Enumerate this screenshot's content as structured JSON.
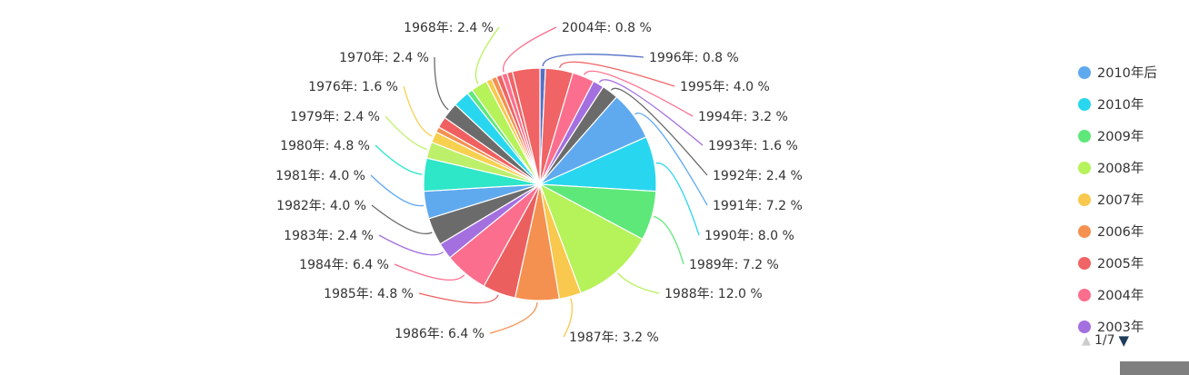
{
  "chart_data": {
    "type": "pie",
    "slices": [
      {
        "label": "1996年: 0.8 %",
        "name": "1996年",
        "value": 0.8,
        "color": "#5470c6"
      },
      {
        "label": "1995年: 4.0 %",
        "name": "1995年",
        "value": 4.0,
        "color": "#f06465"
      },
      {
        "label": "1994年: 3.2 %",
        "name": "1994年",
        "value": 3.2,
        "color": "#fc6e8d"
      },
      {
        "label": "1993年: 1.6 %",
        "name": "1993年",
        "value": 1.6,
        "color": "#a470e0"
      },
      {
        "label": "1992年: 2.4 %",
        "name": "1992年",
        "value": 2.4,
        "color": "#6b6b6b"
      },
      {
        "label": "1991年: 7.2 %",
        "name": "1991年",
        "value": 7.2,
        "color": "#5fa9ef"
      },
      {
        "label": "1990年: 8.0 %",
        "name": "1990年",
        "value": 8.0,
        "color": "#29d6ef"
      },
      {
        "label": "1989年: 7.2 %",
        "name": "1989年",
        "value": 7.2,
        "color": "#5ee87a"
      },
      {
        "label": "1988年: 12.0 %",
        "name": "1988年",
        "value": 12.0,
        "color": "#b6f25a"
      },
      {
        "label": "1987年: 3.2 %",
        "name": "1987年",
        "value": 3.2,
        "color": "#f8c94e"
      },
      {
        "label": "1986年: 6.4 %",
        "name": "1986年",
        "value": 6.4,
        "color": "#f59150"
      },
      {
        "label": "1985年: 4.8 %",
        "name": "1985年",
        "value": 4.8,
        "color": "#ec5f5f"
      },
      {
        "label": "1984年: 6.4 %",
        "name": "1984年",
        "value": 6.4,
        "color": "#fc6e8d"
      },
      {
        "label": "1983年: 2.4 %",
        "name": "1983年",
        "value": 2.4,
        "color": "#a470e0"
      },
      {
        "label": "1982年: 4.0 %",
        "name": "1982年",
        "value": 4.0,
        "color": "#6b6b6b"
      },
      {
        "label": "1981年: 4.0 %",
        "name": "1981年",
        "value": 4.0,
        "color": "#5fa9ef"
      },
      {
        "label": "1980年: 4.8 %",
        "name": "1980年",
        "value": 4.8,
        "color": "#2ee6c8"
      },
      {
        "label": "1979年: 2.4 %",
        "name": "1979年",
        "value": 2.4,
        "color": "#bdf06a"
      },
      {
        "label": "1976年: 1.6 %",
        "name": "1976年",
        "value": 1.6,
        "color": "#f8d050"
      },
      {
        "label": "",
        "name": "",
        "value": 0.8,
        "color": "#f59150"
      },
      {
        "label": "",
        "name": "",
        "value": 1.6,
        "color": "#f06060"
      },
      {
        "label": "1970年: 2.4 %",
        "name": "1970年",
        "value": 2.4,
        "color": "#6b6b6b"
      },
      {
        "label": "",
        "name": "",
        "value": 2.4,
        "color": "#29d6ef"
      },
      {
        "label": "",
        "name": "",
        "value": 0.8,
        "color": "#5ee87a"
      },
      {
        "label": "1968年: 2.4 %",
        "name": "1968年",
        "value": 2.4,
        "color": "#b6f25a"
      },
      {
        "label": "",
        "name": "",
        "value": 0.8,
        "color": "#f8c94e"
      },
      {
        "label": "",
        "name": "",
        "value": 0.8,
        "color": "#f59150"
      },
      {
        "label": "",
        "name": "",
        "value": 0.8,
        "color": "#f06465"
      },
      {
        "label": "2004年: 0.8 %",
        "name": "2004年",
        "value": 0.8,
        "color": "#fc6e8d"
      },
      {
        "label": "",
        "name": "",
        "value": 0.8,
        "color": "#f06465"
      },
      {
        "label": "",
        "name": "",
        "value": 4.0,
        "color": "#f06465"
      }
    ]
  },
  "legend": {
    "items": [
      {
        "label": "2010年后",
        "color": "#5fa9ef"
      },
      {
        "label": "2010年",
        "color": "#29d6ef"
      },
      {
        "label": "2009年",
        "color": "#5ee87a"
      },
      {
        "label": "2008年",
        "color": "#b6f25a"
      },
      {
        "label": "2007年",
        "color": "#f8c94e"
      },
      {
        "label": "2006年",
        "color": "#f59150"
      },
      {
        "label": "2005年",
        "color": "#f06465"
      },
      {
        "label": "2004年",
        "color": "#fc6e8d"
      },
      {
        "label": "2003年",
        "color": "#a470e0"
      }
    ],
    "pager": {
      "text": "1/7"
    }
  }
}
